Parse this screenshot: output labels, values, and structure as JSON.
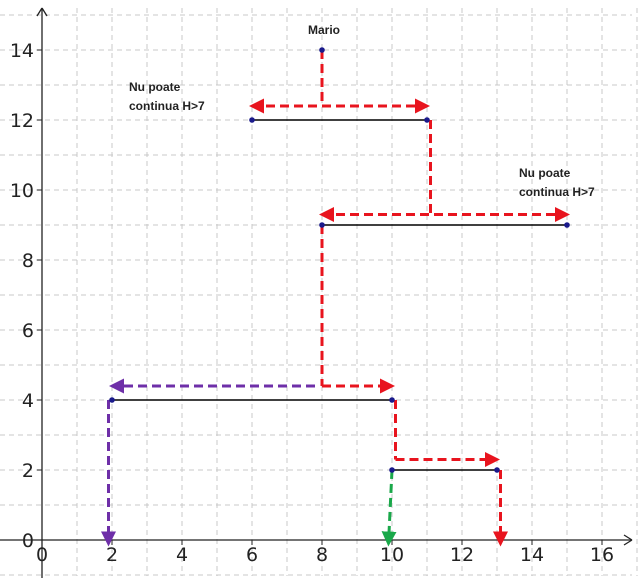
{
  "colors": {
    "background": "#ffffff",
    "grid": "#c8c8c8",
    "axis": "#222222",
    "platform": "#000000",
    "point": "#1a1a8c",
    "red_path": "#e8141e",
    "purple_path": "#6e2fa8",
    "green_path": "#1aa84a"
  },
  "chart_data": {
    "type": "diagram",
    "xlim": [
      -0.4,
      16.9
    ],
    "ylim": [
      -1.2,
      15.1
    ],
    "x_ticks": [
      0,
      2,
      4,
      6,
      8,
      10,
      12,
      14,
      16
    ],
    "y_ticks": [
      0,
      2,
      4,
      6,
      8,
      10,
      12,
      14
    ],
    "grid": true,
    "start_point": {
      "x": 8,
      "y": 14
    },
    "platforms": [
      {
        "x1": 6,
        "x2": 11,
        "y": 12
      },
      {
        "x1": 8,
        "x2": 15,
        "y": 9
      },
      {
        "x1": 2,
        "x2": 10,
        "y": 4
      },
      {
        "x1": 10,
        "x2": 13,
        "y": 2
      }
    ],
    "paths": [
      {
        "style": "red",
        "points": [
          [
            8,
            14
          ],
          [
            8,
            12.4
          ]
        ],
        "arrow": "none"
      },
      {
        "style": "red",
        "points": [
          [
            6,
            12.4
          ],
          [
            11,
            12.4
          ]
        ],
        "arrow": "both"
      },
      {
        "style": "red",
        "points": [
          [
            11.1,
            12
          ],
          [
            11.1,
            9.3
          ]
        ],
        "arrow": "none"
      },
      {
        "style": "red",
        "points": [
          [
            8,
            9.3
          ],
          [
            15,
            9.3
          ]
        ],
        "arrow": "both"
      },
      {
        "style": "red",
        "points": [
          [
            8,
            9
          ],
          [
            8,
            4.4
          ]
        ],
        "arrow": "none"
      },
      {
        "style": "red",
        "points": [
          [
            8,
            4.4
          ],
          [
            10,
            4.4
          ]
        ],
        "arrow": "end"
      },
      {
        "style": "purple",
        "points": [
          [
            7.8,
            4.4
          ],
          [
            2,
            4.4
          ]
        ],
        "arrow": "end"
      },
      {
        "style": "purple",
        "points": [
          [
            1.9,
            4
          ],
          [
            1.9,
            -0.1
          ]
        ],
        "arrow": "end"
      },
      {
        "style": "red",
        "points": [
          [
            10.1,
            4
          ],
          [
            10.1,
            2.3
          ]
        ],
        "arrow": "none"
      },
      {
        "style": "red",
        "points": [
          [
            10.1,
            2.3
          ],
          [
            13,
            2.3
          ]
        ],
        "arrow": "end"
      },
      {
        "style": "green",
        "points": [
          [
            10,
            2
          ],
          [
            9.9,
            -0.1
          ]
        ],
        "arrow": "end"
      },
      {
        "style": "red",
        "points": [
          [
            13.1,
            2
          ],
          [
            13.1,
            -0.1
          ]
        ],
        "arrow": "end"
      }
    ],
    "annotations": {
      "mario": "Mario",
      "left_note_line1": "Nu poate",
      "left_note_line2": "continua H>7",
      "right_note_line1": "Nu poate",
      "right_note_line2": "continua H>7"
    }
  }
}
